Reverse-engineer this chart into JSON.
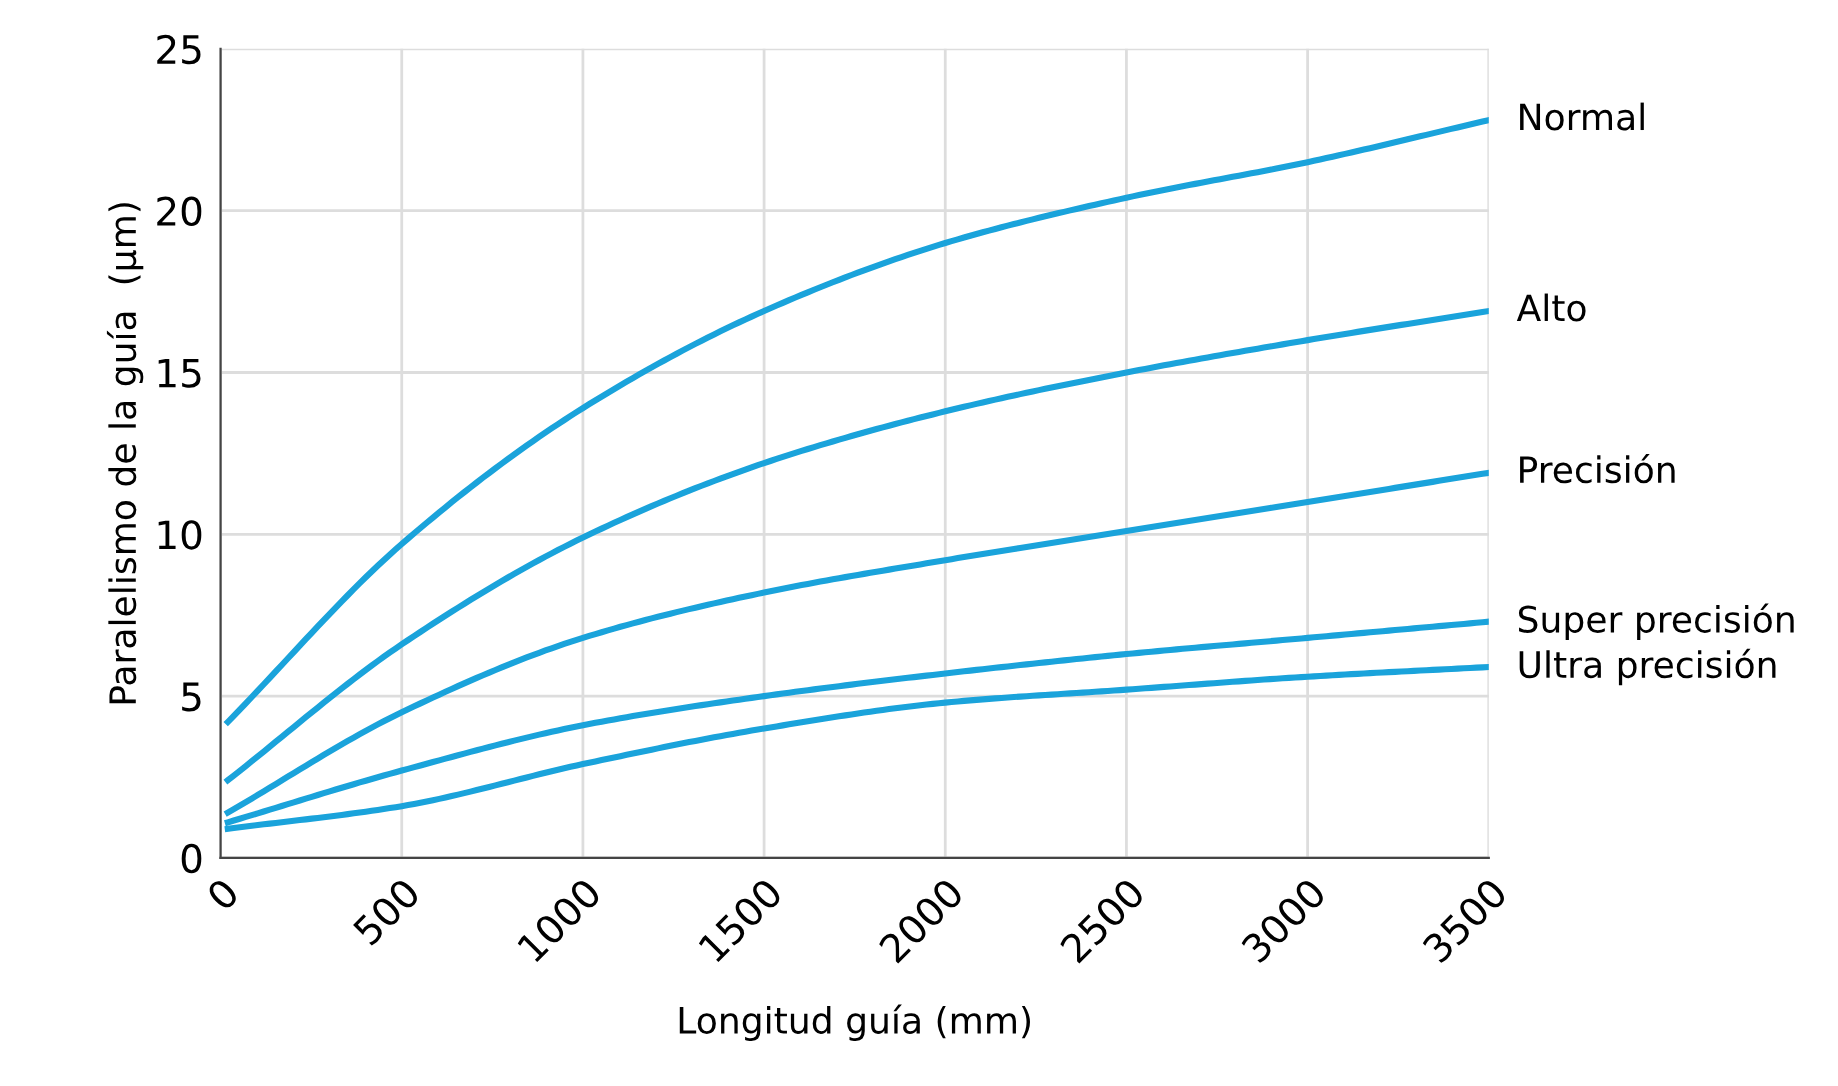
{
  "chart_data": {
    "type": "line",
    "xlabel": "Longitud guía (mm)",
    "ylabel": "Paralelismo de la guía  (μm)",
    "xlim": [
      0,
      3500
    ],
    "ylim": [
      0,
      25
    ],
    "xticks": [
      0,
      500,
      1000,
      1500,
      2000,
      2500,
      3000,
      3500
    ],
    "yticks": [
      0,
      5,
      10,
      15,
      20,
      25
    ],
    "grid": true,
    "marker": "none",
    "line_style": "solid",
    "x": [
      20,
      500,
      1000,
      1500,
      2000,
      2500,
      3000,
      3500
    ],
    "series": [
      {
        "name": "Normal",
        "color": "#1aa3db",
        "values": [
          4.2,
          9.7,
          13.9,
          16.9,
          19.0,
          20.4,
          21.5,
          22.8
        ]
      },
      {
        "name": "Alto",
        "color": "#1aa3db",
        "values": [
          2.4,
          6.6,
          9.9,
          12.2,
          13.8,
          15.0,
          16.0,
          16.9
        ]
      },
      {
        "name": "Precisión",
        "color": "#1aa3db",
        "values": [
          1.4,
          4.5,
          6.8,
          8.2,
          9.2,
          10.1,
          11.0,
          11.9
        ]
      },
      {
        "name": "Super precisión",
        "color": "#1aa3db",
        "values": [
          1.1,
          2.7,
          4.1,
          5.0,
          5.7,
          6.3,
          6.8,
          7.3
        ]
      },
      {
        "name": "Ultra precisión",
        "color": "#1aa3db",
        "values": [
          0.9,
          1.6,
          2.9,
          4.0,
          4.8,
          5.2,
          5.6,
          5.9
        ]
      }
    ]
  }
}
